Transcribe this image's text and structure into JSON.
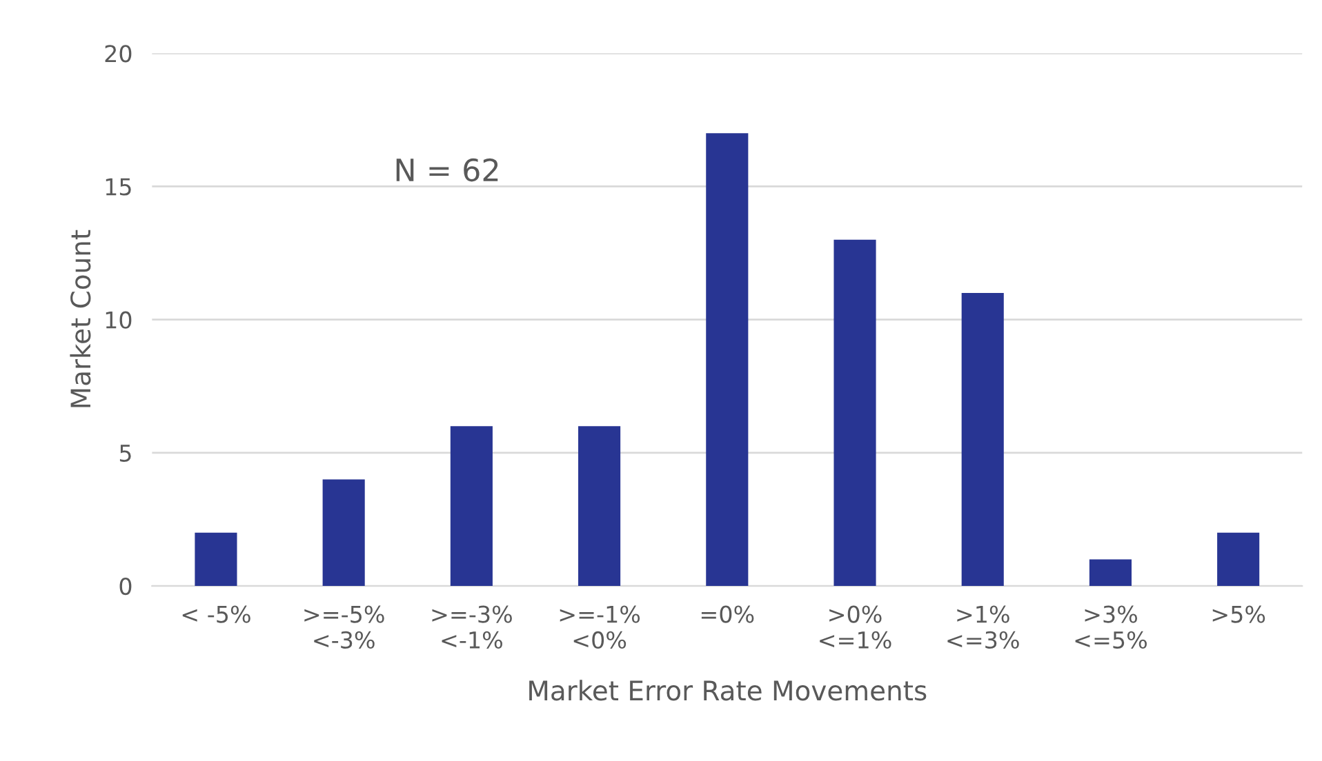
{
  "chart_data": {
    "type": "bar",
    "xlabel": "Market Error Rate Movements",
    "ylabel": "Market Count",
    "categories": [
      "< -5%",
      ">=-5%\n<-3%",
      ">=-3%\n<-1%",
      ">=-1%\n<0%",
      "=0%",
      ">0%\n<=1%",
      ">1%\n<=3%",
      ">3%\n<=5%",
      ">5%"
    ],
    "values": [
      2,
      4,
      6,
      6,
      17,
      13,
      11,
      1,
      2
    ],
    "color": "#283593",
    "ylim": [
      0,
      20
    ],
    "yticks": [
      0,
      5,
      10,
      15,
      20
    ],
    "grid": "y",
    "annotations": [
      "N = 62"
    ]
  }
}
